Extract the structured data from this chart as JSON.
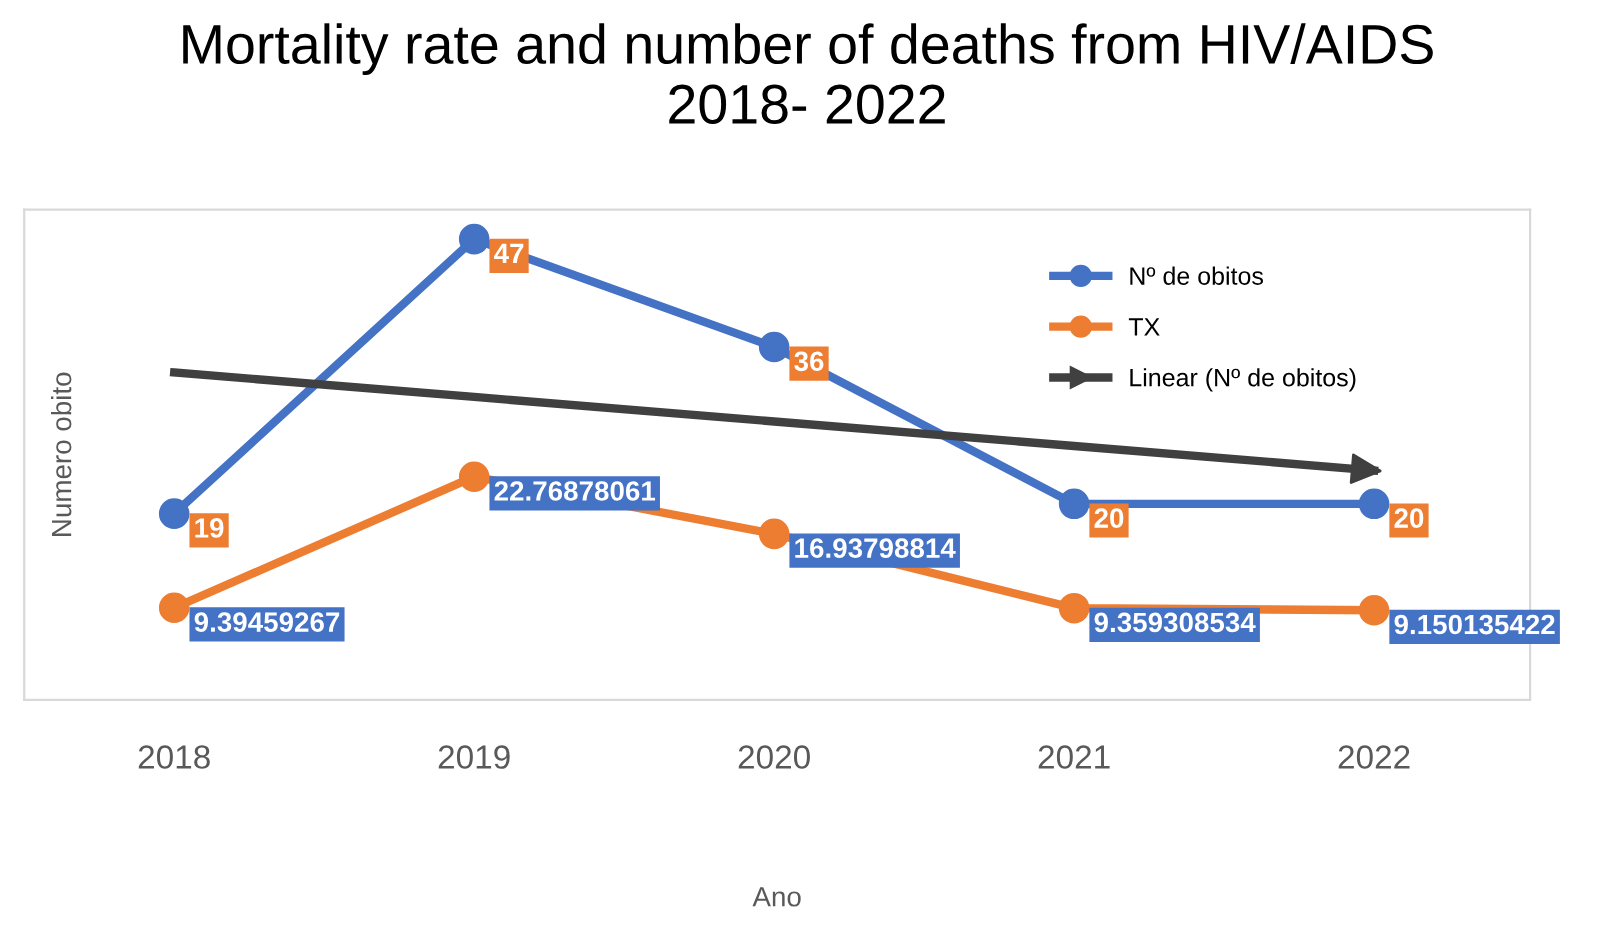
{
  "chart_data": {
    "type": "line",
    "title": "Mortality rate and number of deaths from HIV/AIDS\n2018- 2022",
    "xlabel": "Ano",
    "ylabel": "Numero obito",
    "categories": [
      "2018",
      "2019",
      "2020",
      "2021",
      "2022"
    ],
    "series": [
      {
        "name": "Nº de obitos",
        "color": "#4472c4",
        "values": [
          19,
          47,
          36,
          20,
          20
        ]
      },
      {
        "name": "TX",
        "color": "#ed7d31",
        "values": [
          9.39459267,
          22.76878061,
          16.93798814,
          9.359308534,
          9.150135422
        ]
      },
      {
        "name": "Linear (Nº de obitos)",
        "color": "#404040",
        "values": [
          33.4,
          30.9,
          28.4,
          25.9,
          23.4
        ],
        "marker": "none",
        "data_labels": false
      }
    ],
    "ylim": [
      0,
      50
    ],
    "tick_labels": "x",
    "marker": "circle",
    "line_style": "solid",
    "data_labels": true,
    "grid": false,
    "legend": "top right"
  }
}
